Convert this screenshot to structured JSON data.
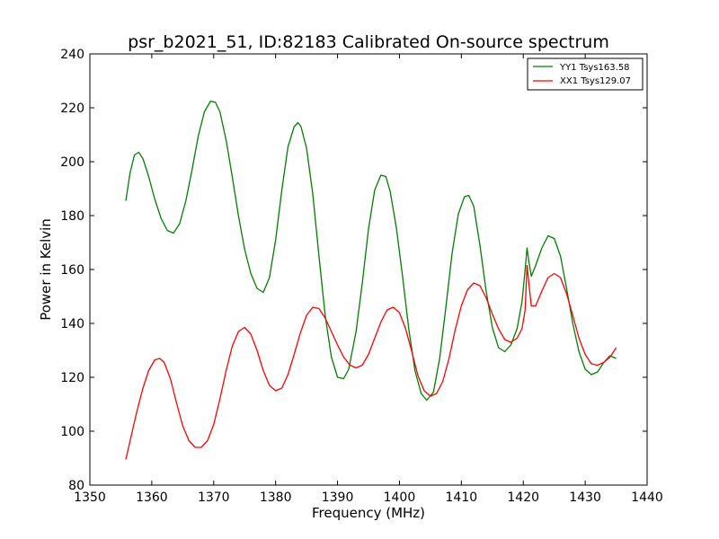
{
  "chart_data": {
    "type": "line",
    "title": "psr_b2021_51, ID:82183 Calibrated On-source spectrum",
    "xlabel": "Frequency (MHz)",
    "ylabel": "Power in Kelvin",
    "xlim": [
      1350,
      1440
    ],
    "ylim": [
      80,
      240
    ],
    "xticks": [
      1350,
      1360,
      1370,
      1380,
      1390,
      1400,
      1410,
      1420,
      1430,
      1440
    ],
    "yticks": [
      80,
      100,
      120,
      140,
      160,
      180,
      200,
      220,
      240
    ],
    "grid": false,
    "legend_position": "top-right",
    "series": [
      {
        "name": "YY1 Tsys163.58",
        "color": "#008000",
        "x": [
          1355.8,
          1356.5,
          1357.2,
          1357.9,
          1358.6,
          1359.5,
          1360.5,
          1361.5,
          1362.5,
          1363.5,
          1364.5,
          1365.5,
          1366.5,
          1367.5,
          1368.5,
          1369.5,
          1370.3,
          1371.0,
          1372.0,
          1373.0,
          1374.0,
          1375.0,
          1376.0,
          1377.0,
          1378.0,
          1379.0,
          1380.0,
          1381.0,
          1382.0,
          1383.0,
          1383.6,
          1384.1,
          1385.0,
          1386.0,
          1387.0,
          1388.0,
          1389.0,
          1390.0,
          1391.0,
          1391.8,
          1393.0,
          1394.0,
          1395.0,
          1396.0,
          1397.0,
          1397.8,
          1398.5,
          1399.5,
          1400.5,
          1401.5,
          1402.5,
          1403.5,
          1404.4,
          1405.5,
          1406.5,
          1407.5,
          1408.5,
          1409.5,
          1410.5,
          1411.2,
          1412.0,
          1413.0,
          1414.0,
          1415.0,
          1416.0,
          1417.0,
          1418.0,
          1419.0,
          1419.8,
          1420.3,
          1420.6,
          1420.9,
          1421.3,
          1422.0,
          1423.0,
          1424.0,
          1425.0,
          1426.0,
          1427.0,
          1428.0,
          1429.0,
          1430.0,
          1431.0,
          1432.0,
          1433.0,
          1434.0,
          1435.0
        ],
        "values": [
          185.5,
          196.0,
          202.5,
          203.5,
          201.0,
          194.5,
          186.0,
          179.0,
          174.5,
          173.5,
          177.0,
          185.5,
          197.0,
          209.5,
          218.5,
          222.5,
          222.0,
          218.5,
          208.0,
          194.5,
          180.0,
          167.5,
          158.5,
          153.0,
          151.5,
          157.0,
          171.0,
          189.5,
          205.5,
          213.0,
          214.5,
          213.0,
          205.0,
          188.0,
          165.0,
          143.0,
          127.5,
          120.0,
          119.5,
          123.0,
          137.0,
          155.0,
          175.0,
          189.5,
          195.0,
          194.5,
          189.0,
          175.5,
          157.5,
          138.0,
          122.5,
          114.0,
          111.5,
          114.5,
          127.0,
          146.0,
          166.0,
          180.5,
          187.0,
          187.5,
          183.5,
          169.0,
          152.0,
          138.5,
          131.0,
          129.5,
          132.0,
          138.0,
          148.0,
          160.0,
          168.0,
          163.0,
          157.5,
          161.5,
          168.0,
          172.5,
          171.5,
          165.0,
          153.0,
          140.0,
          129.5,
          123.0,
          121.0,
          122.0,
          125.5,
          128.0,
          127.0
        ]
      },
      {
        "name": "XX1 Tsys129.07",
        "color": "#ff0000",
        "x": [
          1355.8,
          1356.5,
          1357.5,
          1358.5,
          1359.5,
          1360.5,
          1361.3,
          1362.0,
          1363.0,
          1364.0,
          1365.0,
          1366.0,
          1367.0,
          1368.0,
          1369.0,
          1370.0,
          1371.0,
          1372.0,
          1373.0,
          1374.0,
          1375.0,
          1376.0,
          1377.0,
          1378.0,
          1379.0,
          1380.0,
          1381.0,
          1382.0,
          1383.0,
          1384.0,
          1385.0,
          1386.0,
          1387.0,
          1388.0,
          1389.0,
          1390.0,
          1391.0,
          1392.0,
          1393.0,
          1394.0,
          1395.0,
          1396.0,
          1397.0,
          1398.0,
          1399.0,
          1400.0,
          1401.0,
          1402.0,
          1403.0,
          1404.0,
          1405.0,
          1406.0,
          1407.0,
          1408.0,
          1409.0,
          1410.0,
          1411.0,
          1412.0,
          1413.0,
          1414.0,
          1415.0,
          1416.0,
          1417.0,
          1418.0,
          1419.0,
          1419.8,
          1420.3,
          1420.6,
          1420.9,
          1421.3,
          1422.0,
          1423.0,
          1424.0,
          1425.0,
          1426.0,
          1427.0,
          1428.0,
          1429.0,
          1430.0,
          1431.0,
          1432.0,
          1433.0,
          1434.0,
          1435.0
        ],
        "values": [
          89.5,
          96.5,
          106.5,
          115.5,
          122.5,
          126.5,
          127.0,
          125.5,
          119.5,
          110.5,
          102.0,
          96.5,
          94.0,
          94.0,
          96.5,
          102.5,
          112.0,
          122.5,
          131.5,
          137.0,
          138.5,
          136.0,
          130.0,
          122.5,
          117.0,
          115.0,
          116.0,
          121.0,
          128.5,
          136.5,
          143.0,
          146.0,
          145.5,
          142.0,
          137.0,
          132.0,
          127.5,
          124.5,
          123.5,
          124.5,
          128.5,
          134.5,
          140.5,
          145.0,
          146.0,
          144.0,
          138.0,
          129.5,
          120.5,
          115.0,
          113.0,
          114.0,
          118.5,
          127.0,
          137.5,
          146.5,
          152.5,
          155.0,
          154.0,
          149.5,
          143.5,
          138.0,
          134.0,
          133.0,
          134.5,
          138.0,
          145.0,
          161.5,
          155.0,
          146.5,
          146.5,
          152.0,
          157.0,
          158.5,
          157.0,
          151.0,
          143.0,
          134.5,
          128.5,
          125.0,
          124.5,
          125.5,
          127.5,
          131.0
        ]
      }
    ]
  }
}
